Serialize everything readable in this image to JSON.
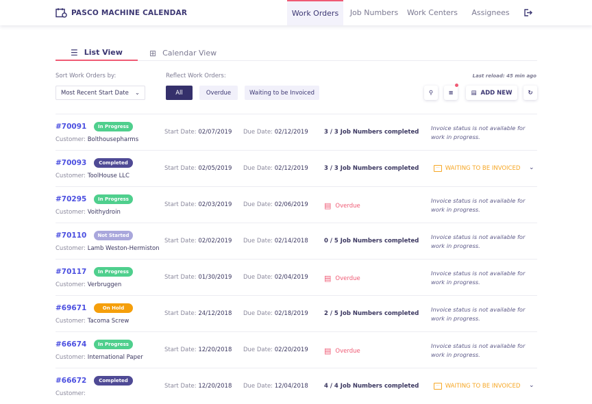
{
  "app": {
    "title": "PASCO MACHINE CALENDAR"
  },
  "nav": [
    {
      "label": "Work Orders",
      "active": true
    },
    {
      "label": "Job Numbers"
    },
    {
      "label": "Work Centers"
    },
    {
      "label": "Assignees"
    }
  ],
  "views": {
    "list": "List View",
    "calendar": "Calendar View"
  },
  "sort": {
    "label": "Sort Work Orders by:",
    "value": "Most Recent Start Date"
  },
  "filter": {
    "label": "Reflect Work Orders:",
    "options": [
      "All",
      "Overdue",
      "Waiting to be Invoiced"
    ],
    "selected": "All"
  },
  "last_reload": "Last reload: 45 min ago",
  "add_new": "ADD NEW",
  "labels": {
    "customer": "Customer: ",
    "start": "Start Date: ",
    "due": "Due Date: "
  },
  "status_colors": {
    "In Progress": "#4fcf8d",
    "Completed": "#4f4a95",
    "Not Started": "#a9a7dc",
    "On Hold": "#f59f0b"
  },
  "orders": [
    {
      "number": "#70091",
      "status": "In Progress",
      "customer": "Bolthousepharms",
      "start": "02/07/2019",
      "due": "02/12/2019",
      "progress": "3 / 3 Job Numbers completed",
      "invoice": "Invoice status is not available for work in progress."
    },
    {
      "number": "#70093",
      "status": "Completed",
      "customer": "ToolHouse LLC",
      "start": "02/05/2019",
      "due": "02/12/2019",
      "progress": "3 / 3 Job Numbers completed",
      "invoice": "WAITING TO BE INVOICED"
    },
    {
      "number": "#70295",
      "status": "In Progress",
      "customer": "Voithydroin",
      "start": "02/03/2019",
      "due": "02/06/2019",
      "progress": "Overdue",
      "invoice": "Invoice status is not available for work in progress."
    },
    {
      "number": "#70110",
      "status": "Not Started",
      "customer": "Lamb Weston-Hermiston",
      "start": "02/02/2019",
      "due": "02/14/2018",
      "progress": "0 / 5 Job Numbers completed",
      "invoice": "Invoice status is not available for work in progress."
    },
    {
      "number": "#70117",
      "status": "In Progress",
      "customer": "Verbruggen",
      "start": "01/30/2019",
      "due": "02/04/2019",
      "progress": "Overdue",
      "invoice": "Invoice status is not available for work in progress."
    },
    {
      "number": "#69671",
      "status": "On Hold",
      "customer": "Tacoma Screw",
      "start": "24/12/2018",
      "due": "02/18/2019",
      "progress": "2 / 5 Job Numbers completed",
      "invoice": "Invoice status is not available for work in progress."
    },
    {
      "number": "#66674",
      "status": "In Progress",
      "customer": "International Paper",
      "start": "12/20/2018",
      "due": "02/20/2019",
      "progress": "Overdue",
      "invoice": "Invoice status is not available for work in progress."
    },
    {
      "number": "#66672",
      "status": "Completed",
      "customer": "",
      "start": "12/20/2018",
      "due": "12/04/2018",
      "progress": "4 / 4 Job Numbers completed",
      "invoice": "WAITING TO BE INVOICED"
    }
  ]
}
